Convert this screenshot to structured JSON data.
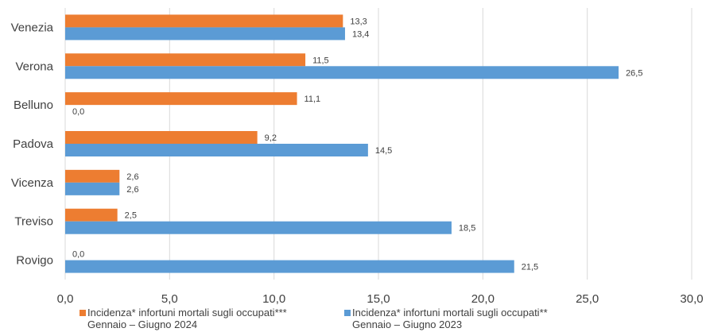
{
  "chart_data": {
    "type": "bar",
    "orientation": "horizontal",
    "categories": [
      "Venezia",
      "Verona",
      "Belluno",
      "Padova",
      "Vicenza",
      "Treviso",
      "Rovigo"
    ],
    "series": [
      {
        "name_lines": [
          "Incidenza* infortuni mortali  sugli occupati***",
          "Gennaio – Giugno 2024"
        ],
        "color": "#ED7D31",
        "values": [
          13.3,
          11.5,
          11.1,
          9.2,
          2.6,
          2.5,
          0.0
        ],
        "labels": [
          "13,3",
          "11,5",
          "11,1",
          "9,2",
          "2,6",
          "2,5",
          "0,0"
        ]
      },
      {
        "name_lines": [
          "Incidenza* infortuni mortali  sugli occupati**",
          "Gennaio – Giugno 2023"
        ],
        "color": "#5B9BD5",
        "values": [
          13.4,
          26.5,
          0.0,
          14.5,
          2.6,
          18.5,
          21.5
        ],
        "labels": [
          "13,4",
          "26,5",
          "0,0",
          "14,5",
          "2,6",
          "18,5",
          "21,5"
        ]
      }
    ],
    "xlim": [
      0,
      30
    ],
    "xticks": [
      0,
      5,
      10,
      15,
      20,
      25,
      30
    ],
    "xtick_labels": [
      "0,0",
      "5,0",
      "10,0",
      "15,0",
      "20,0",
      "25,0",
      "30,0"
    ],
    "gridlines": "vertical",
    "gridline_color": "#D9D9D9",
    "legend_position": "bottom-left"
  }
}
